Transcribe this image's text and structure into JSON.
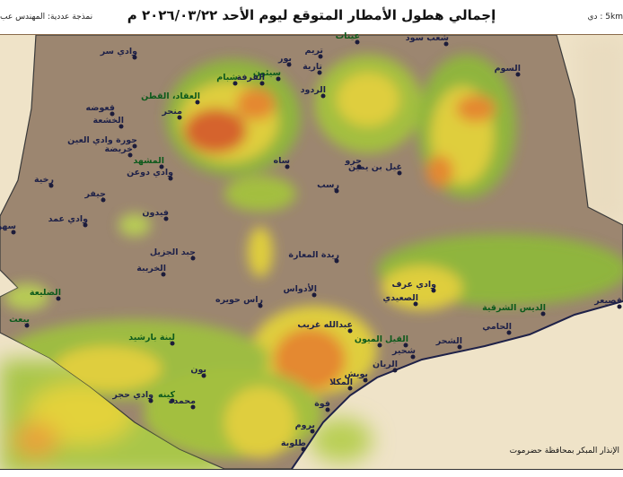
{
  "header": {
    "title": "إجمالي هطول الأمطار المتوقع ليوم الأحد ٢٠٢٦/٠٣/٢٢ م",
    "credit": "نمذجة عددية: المهندس عب",
    "resolution": "5km : دي"
  },
  "footer": {
    "source": "الإنذار المبكر بمحافظة حضرموت"
  },
  "colors": {
    "terrain": "#9c8670",
    "light_rain": "#8fb83a",
    "moderate_rain": "#e3d23a",
    "heavy_rain": "#e8892e",
    "very_heavy_rain": "#d9622a",
    "sea": "#efe3c8",
    "label_dark": "#1e2148",
    "label_green": "#0d5a1c"
  },
  "places": [
    {
      "name": "عينات",
      "tone": "green"
    },
    {
      "name": "تريم",
      "tone": "dark"
    },
    {
      "name": "شعب سود",
      "tone": "dark"
    },
    {
      "name": "وادي سر",
      "tone": "dark"
    },
    {
      "name": "بور",
      "tone": "dark"
    },
    {
      "name": "تارية",
      "tone": "dark"
    },
    {
      "name": "سيئون",
      "tone": "green"
    },
    {
      "name": "شبام",
      "tone": "green"
    },
    {
      "name": "السوم",
      "tone": "dark"
    },
    {
      "name": "العقاد، القطن",
      "tone": "green"
    },
    {
      "name": "القرفة",
      "tone": "dark"
    },
    {
      "name": "الردود",
      "tone": "dark"
    },
    {
      "name": "قعوضه",
      "tone": "dark"
    },
    {
      "name": "الخشعة",
      "tone": "dark"
    },
    {
      "name": "منحر",
      "tone": "dark"
    },
    {
      "name": "حورة وادي العين",
      "tone": "dark"
    },
    {
      "name": "خريضة",
      "tone": "dark"
    },
    {
      "name": "المشهد",
      "tone": "green"
    },
    {
      "name": "وادي دوعن",
      "tone": "dark"
    },
    {
      "name": "ساه",
      "tone": "dark"
    },
    {
      "name": "حرو",
      "tone": "dark"
    },
    {
      "name": "غيل بن يمين",
      "tone": "dark"
    },
    {
      "name": "رسب",
      "tone": "dark"
    },
    {
      "name": "رخية",
      "tone": "dark"
    },
    {
      "name": "جيفر",
      "tone": "dark"
    },
    {
      "name": "وادي عمد",
      "tone": "dark"
    },
    {
      "name": "فيدون",
      "tone": "dark"
    },
    {
      "name": "سهوه",
      "tone": "dark"
    },
    {
      "name": "جبد الجزيل",
      "tone": "dark"
    },
    {
      "name": "الخريبة",
      "tone": "dark"
    },
    {
      "name": "الضليعة",
      "tone": "green"
    },
    {
      "name": "راس حويره",
      "tone": "dark"
    },
    {
      "name": "ريدة المعارة",
      "tone": "dark"
    },
    {
      "name": "الأدواس",
      "tone": "dark"
    },
    {
      "name": "وادي عرف",
      "tone": "dark"
    },
    {
      "name": "الصعيدي",
      "tone": "dark"
    },
    {
      "name": "الديس الشرقية",
      "tone": "green"
    },
    {
      "name": "قصيعر",
      "tone": "dark"
    },
    {
      "name": "عبدالله غريب",
      "tone": "dark"
    },
    {
      "name": "الحامي",
      "tone": "dark"
    },
    {
      "name": "الشحر",
      "tone": "dark"
    },
    {
      "name": "القيل",
      "tone": "green"
    },
    {
      "name": "الميون",
      "tone": "green"
    },
    {
      "name": "شحير",
      "tone": "dark"
    },
    {
      "name": "الريان",
      "tone": "dark"
    },
    {
      "name": "بويش",
      "tone": "dark"
    },
    {
      "name": "المكلا",
      "tone": "dark"
    },
    {
      "name": "فوة",
      "tone": "dark"
    },
    {
      "name": "بروم",
      "tone": "dark"
    },
    {
      "name": "طلوبة",
      "tone": "dark"
    },
    {
      "name": "يبعث",
      "tone": "green"
    },
    {
      "name": "لبنة بارشيد",
      "tone": "green"
    },
    {
      "name": "بون",
      "tone": "dark"
    },
    {
      "name": "وادي حجر",
      "tone": "dark"
    },
    {
      "name": "كينه",
      "tone": "green"
    },
    {
      "name": "محمدة",
      "tone": "dark"
    }
  ]
}
